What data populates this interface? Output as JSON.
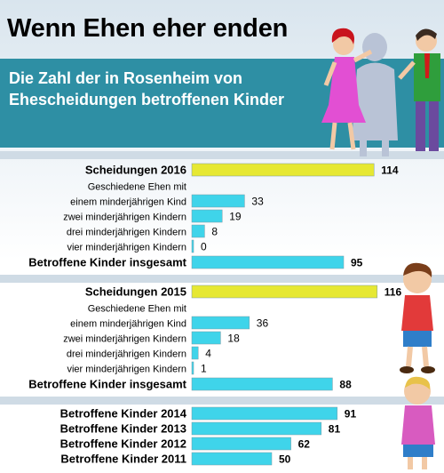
{
  "title": "Wenn Ehen eher enden",
  "subtitle": "Die Zahl der in Rosenheim von Ehescheidungen betroffenen Kinder",
  "colors": {
    "accent": "#2e8fa4",
    "yellow_bar": "#e6e833",
    "cyan_bar": "#3fd4ea"
  },
  "chart_data": {
    "type": "bar",
    "orientation": "horizontal",
    "groups": [
      {
        "title": "Scheidungen 2016",
        "total_divorces": 114,
        "note": "Geschiedene Ehen mit",
        "rows": [
          {
            "label": "einem minderjährigen Kind",
            "value": 33
          },
          {
            "label": "zwei minderjährigen Kindern",
            "value": 19
          },
          {
            "label": "drei minderjährigen Kindern",
            "value": 8
          },
          {
            "label": "vier minderjährigen Kindern",
            "value": 0
          }
        ],
        "total_children_label": "Betroffene Kinder insgesamt",
        "total_children": 95
      },
      {
        "title": "Scheidungen 2015",
        "total_divorces": 116,
        "note": "Geschiedene Ehen mit",
        "rows": [
          {
            "label": "einem minderjährigen Kind",
            "value": 36
          },
          {
            "label": "zwei minderjährigen Kindern",
            "value": 18
          },
          {
            "label": "drei minderjährigen Kindern",
            "value": 4
          },
          {
            "label": "vier minderjährigen Kindern",
            "value": 1
          }
        ],
        "total_children_label": "Betroffene Kinder insgesamt",
        "total_children": 88
      }
    ],
    "history": [
      {
        "label": "Betroffene Kinder 2014",
        "value": 91
      },
      {
        "label": "Betroffene Kinder 2013",
        "value": 81
      },
      {
        "label": "Betroffene Kinder 2012",
        "value": 62
      },
      {
        "label": "Betroffene Kinder 2011",
        "value": 50
      }
    ]
  }
}
